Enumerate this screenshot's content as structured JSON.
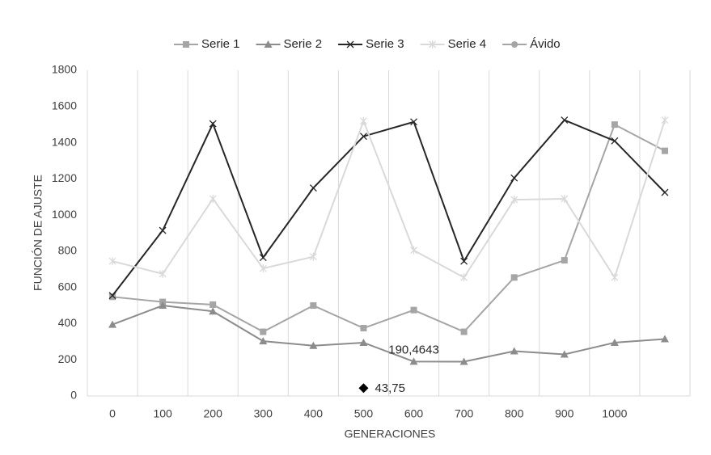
{
  "chart_data": {
    "type": "line",
    "x_label": "GENERACIONES",
    "y_label": "FUNCIÓN DE AJUSTE",
    "categories": [
      "0",
      "100",
      "200",
      "300",
      "400",
      "500",
      "600",
      "700",
      "800",
      "900",
      "1000",
      null
    ],
    "series": [
      {
        "name": "Serie 1",
        "color": "#a5a5a5",
        "marker": "square",
        "line": true,
        "values": [
          548,
          520,
          505,
          355,
          500,
          375,
          475,
          355,
          655,
          750,
          1500,
          1355
        ]
      },
      {
        "name": "Serie 2",
        "color": "#8c8c8c",
        "marker": "triangle",
        "line": true,
        "values": [
          395,
          500,
          468,
          303,
          278,
          295,
          190.4643,
          190,
          248,
          230,
          295,
          315
        ],
        "value_labels": [
          null,
          null,
          null,
          null,
          null,
          null,
          "190,4643",
          null,
          null,
          null,
          null,
          null
        ]
      },
      {
        "name": "Serie 3",
        "color": "#262626",
        "marker": "x",
        "line": true,
        "values": [
          555,
          915,
          1505,
          765,
          1150,
          1435,
          1515,
          745,
          1205,
          1525,
          1410,
          1125
        ]
      },
      {
        "name": "Serie 4",
        "color": "#d9d9d9",
        "marker": "star",
        "line": true,
        "values": [
          745,
          675,
          1090,
          705,
          770,
          1520,
          805,
          655,
          1085,
          1090,
          655,
          1525
        ]
      },
      {
        "name": "Ávido",
        "color": "#a5a5a5",
        "point_color": "#000000",
        "marker": "diamond",
        "line": false,
        "values": [
          null,
          null,
          null,
          null,
          null,
          43.75,
          null,
          null,
          null,
          null,
          null,
          null
        ],
        "value_labels": [
          null,
          null,
          null,
          null,
          null,
          "43,75",
          null,
          null,
          null,
          null,
          null,
          null
        ]
      }
    ],
    "ylim": [
      0,
      1800
    ],
    "yticks": [
      0,
      200,
      400,
      600,
      800,
      1000,
      1200,
      1400,
      1600,
      1800
    ],
    "legend": "top",
    "grid": "x"
  }
}
